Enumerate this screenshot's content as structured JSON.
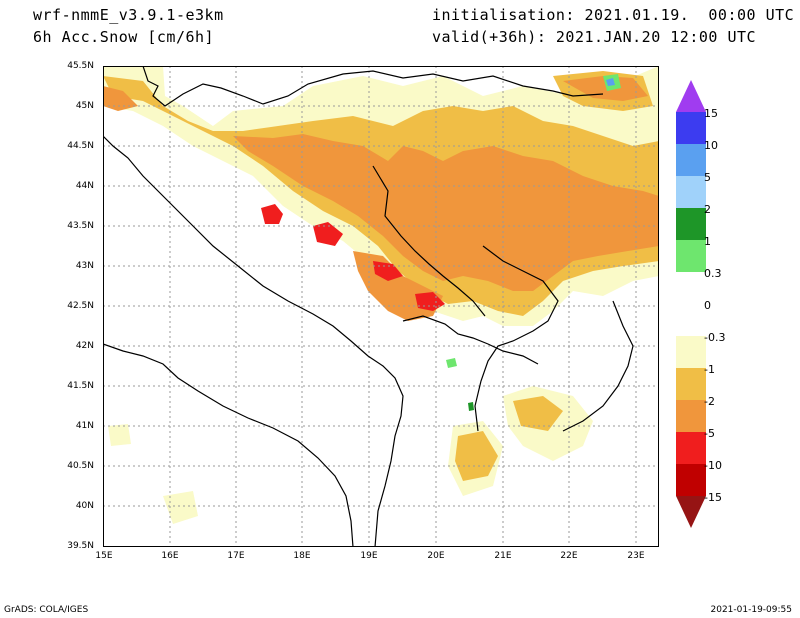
{
  "header": {
    "model": "wrf-nmmE_v3.9.1-e3km",
    "field": "6h Acc.Snow [cm/6h]",
    "init": "initialisation: 2021.01.19.  00:00 UTC",
    "valid": "valid(+36h): 2021.JAN.20 12:00 UTC"
  },
  "axes": {
    "lat_labels": [
      "45.5N",
      "45N",
      "44.5N",
      "44N",
      "43.5N",
      "43N",
      "42.5N",
      "42N",
      "41.5N",
      "41N",
      "40.5N",
      "40N",
      "39.5N"
    ],
    "lon_labels": [
      "15E",
      "16E",
      "17E",
      "18E",
      "19E",
      "20E",
      "21E",
      "22E",
      "23E"
    ]
  },
  "legend": {
    "labels": [
      "15",
      "10",
      "5",
      "2",
      "1",
      "0.3",
      "0",
      "-0.3",
      "-1",
      "-2",
      "-5",
      "-10",
      "-15"
    ],
    "colors": [
      "#a03cf0",
      "#3c3cf0",
      "#5aa0f0",
      "#a0d2fa",
      "#1e9628",
      "#6ee66e",
      "#ffffff",
      "#fafac8",
      "#f0be46",
      "#f0963c",
      "#f01e1e",
      "#c00000",
      "#961414"
    ]
  },
  "footer": {
    "left": "GrADS: COLA/IGES",
    "right": "2021-01-19-09:55"
  }
}
